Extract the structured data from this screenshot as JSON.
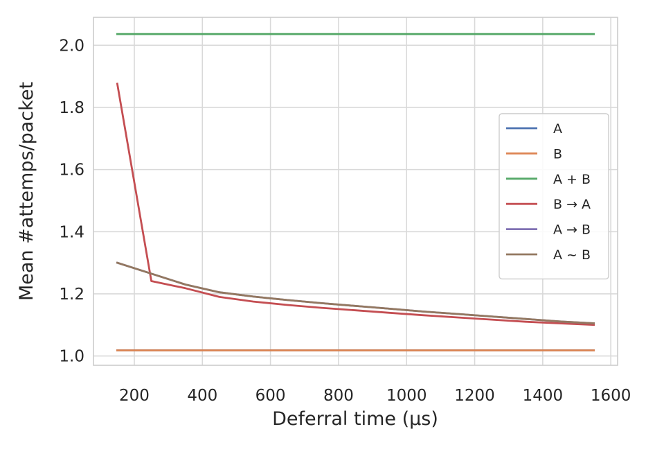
{
  "chart_data": {
    "type": "line",
    "xlabel": "Deferral time (μs)",
    "ylabel": "Mean #attemps/packet",
    "xlim": [
      80,
      1620
    ],
    "ylim": [
      0.97,
      2.09
    ],
    "xticks": [
      200,
      400,
      600,
      800,
      1000,
      1200,
      1400,
      1600
    ],
    "yticks": [
      1.0,
      1.2,
      1.4,
      1.6,
      1.8,
      2.0
    ],
    "xtick_labels": [
      "200",
      "400",
      "600",
      "800",
      "1000",
      "1200",
      "1400",
      "1600"
    ],
    "ytick_labels": [
      "1.0",
      "1.2",
      "1.4",
      "1.6",
      "1.8",
      "2.0"
    ],
    "grid": true,
    "legend_position": "center-right",
    "x": [
      150,
      250,
      350,
      450,
      550,
      650,
      750,
      850,
      950,
      1050,
      1150,
      1250,
      1350,
      1450,
      1550
    ],
    "series": [
      {
        "name": "A",
        "color": "#4c72b0",
        "values": [
          1.018,
          1.018,
          1.018,
          1.018,
          1.018,
          1.018,
          1.018,
          1.018,
          1.018,
          1.018,
          1.018,
          1.018,
          1.018,
          1.018,
          1.018
        ]
      },
      {
        "name": "B",
        "color": "#dd8452",
        "values": [
          1.018,
          1.018,
          1.018,
          1.018,
          1.018,
          1.018,
          1.018,
          1.018,
          1.018,
          1.018,
          1.018,
          1.018,
          1.018,
          1.018,
          1.018
        ]
      },
      {
        "name": "A + B",
        "color": "#55a868",
        "values": [
          2.036,
          2.036,
          2.036,
          2.036,
          2.036,
          2.036,
          2.036,
          2.036,
          2.036,
          2.036,
          2.036,
          2.036,
          2.036,
          2.036,
          2.036
        ]
      },
      {
        "name": "B → A",
        "color": "#c44e52",
        "values": [
          1.876,
          1.241,
          1.218,
          1.19,
          1.175,
          1.164,
          1.155,
          1.147,
          1.139,
          1.131,
          1.124,
          1.117,
          1.11,
          1.105,
          1.1
        ]
      },
      {
        "name": "A → B",
        "color": "#8172b3",
        "values": [
          1.3,
          1.265,
          1.23,
          1.205,
          1.191,
          1.18,
          1.17,
          1.161,
          1.152,
          1.143,
          1.135,
          1.127,
          1.119,
          1.111,
          1.105
        ]
      },
      {
        "name": "A ~ B",
        "color": "#937860",
        "values": [
          1.3,
          1.265,
          1.23,
          1.205,
          1.191,
          1.18,
          1.17,
          1.161,
          1.152,
          1.143,
          1.135,
          1.127,
          1.119,
          1.111,
          1.105
        ]
      }
    ]
  }
}
